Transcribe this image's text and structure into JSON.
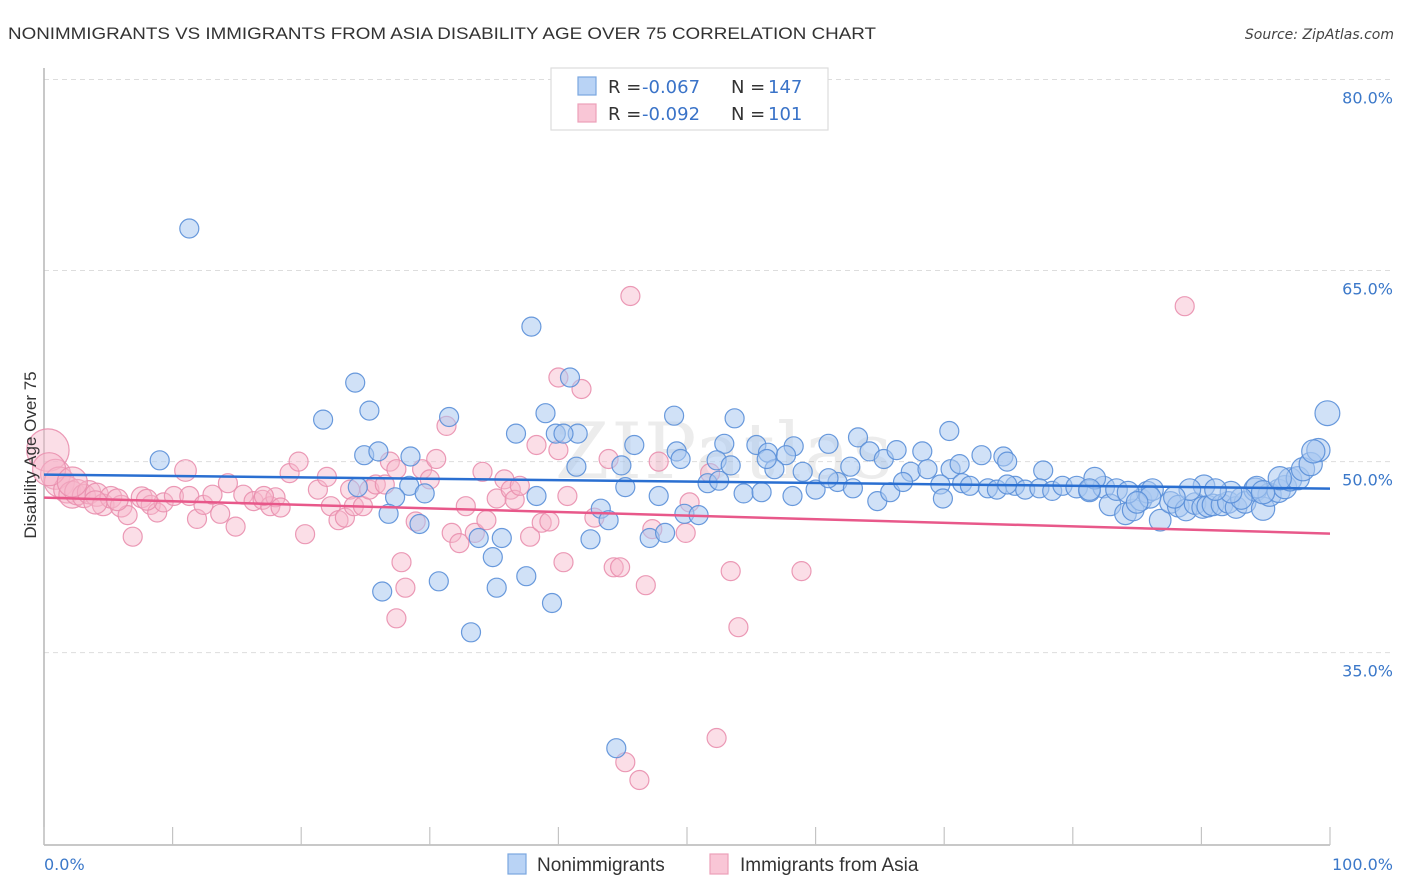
{
  "header": {
    "title": "NONIMMIGRANTS VS IMMIGRANTS FROM ASIA DISABILITY AGE OVER 75 CORRELATION CHART",
    "source": "Source: ZipAtlas.com"
  },
  "legend_top": [
    {
      "r_label": "R =",
      "r_value": "-0.067",
      "n_label": "N =",
      "n_value": "147"
    },
    {
      "r_label": "R =",
      "r_value": "-0.092",
      "n_label": "N =",
      "n_value": "101"
    }
  ],
  "legend_bottom": [
    "Nonimmigrants",
    "Immigrants from Asia"
  ],
  "chart_data": {
    "type": "scatter",
    "title": "NONIMMIGRANTS VS IMMIGRANTS FROM ASIA DISABILITY AGE OVER 75 CORRELATION CHART",
    "xlabel": "",
    "ylabel": "Disability Age Over 75",
    "xlim": [
      0,
      100
    ],
    "ylim": [
      19.9,
      80.9
    ],
    "x_ticks": [
      0,
      10,
      20,
      30,
      40,
      50,
      60,
      70,
      80,
      90,
      100
    ],
    "x_tick_labels": [
      "0.0%",
      "100.0%"
    ],
    "y_ticks": [
      35,
      50,
      65,
      80
    ],
    "y_tick_labels": [
      "35.0%",
      "50.0%",
      "65.0%",
      "80.0%"
    ],
    "grid": true,
    "legend_placement": "bottom-center",
    "watermark": "ZIPatlas",
    "series": [
      {
        "name": "Nonimmigrants",
        "R": -0.067,
        "N": 147,
        "fill": "#a9c8f0",
        "stroke": "#5a8fd8",
        "legend_fill": "#b9d3f5",
        "legend_stroke": "#7aa7e0",
        "line_color": "#2a6fd1",
        "trend": [
          [
            0,
            48.98
          ],
          [
            100,
            47.88
          ]
        ],
        "points": [
          [
            11.3,
            68.3
          ],
          [
            37.9,
            60.6
          ],
          [
            24.2,
            56.2
          ],
          [
            40.9,
            56.6
          ],
          [
            25.3,
            54.0
          ],
          [
            21.7,
            53.3
          ],
          [
            31.5,
            53.5
          ],
          [
            39.0,
            53.8
          ],
          [
            49.0,
            53.6
          ],
          [
            53.7,
            53.4
          ],
          [
            36.7,
            52.2
          ],
          [
            39.8,
            52.2
          ],
          [
            41.5,
            52.2
          ],
          [
            45.9,
            51.3
          ],
          [
            52.9,
            51.4
          ],
          [
            55.4,
            51.3
          ],
          [
            58.3,
            51.2
          ],
          [
            61.0,
            51.4
          ],
          [
            63.3,
            51.9
          ],
          [
            70.4,
            52.4
          ],
          [
            9.0,
            50.1
          ],
          [
            24.9,
            50.5
          ],
          [
            26.0,
            50.8
          ],
          [
            41.4,
            49.6
          ],
          [
            44.9,
            49.7
          ],
          [
            49.2,
            50.8
          ],
          [
            52.3,
            50.1
          ],
          [
            53.4,
            49.7
          ],
          [
            56.3,
            50.7
          ],
          [
            57.7,
            50.5
          ],
          [
            56.8,
            49.4
          ],
          [
            59.0,
            49.2
          ],
          [
            62.7,
            49.6
          ],
          [
            64.2,
            50.8
          ],
          [
            65.3,
            50.2
          ],
          [
            66.3,
            50.9
          ],
          [
            67.4,
            49.2
          ],
          [
            68.3,
            50.8
          ],
          [
            68.7,
            49.4
          ],
          [
            70.5,
            49.4
          ],
          [
            72.9,
            50.5
          ],
          [
            74.6,
            50.4
          ],
          [
            74.9,
            50.0
          ],
          [
            77.7,
            49.3
          ],
          [
            28.5,
            50.4
          ],
          [
            28.4,
            48.1
          ],
          [
            29.6,
            47.5
          ],
          [
            27.3,
            47.2
          ],
          [
            24.4,
            48.0
          ],
          [
            26.8,
            45.9
          ],
          [
            29.2,
            45.1
          ],
          [
            38.3,
            47.3
          ],
          [
            45.2,
            48.0
          ],
          [
            47.8,
            47.3
          ],
          [
            43.3,
            46.3
          ],
          [
            43.9,
            45.4
          ],
          [
            49.8,
            45.9
          ],
          [
            50.9,
            45.8
          ],
          [
            47.1,
            44.0
          ],
          [
            48.3,
            44.4
          ],
          [
            33.8,
            44.0
          ],
          [
            35.6,
            44.0
          ],
          [
            34.9,
            42.5
          ],
          [
            30.7,
            40.6
          ],
          [
            35.2,
            40.1
          ],
          [
            26.3,
            39.8
          ],
          [
            37.5,
            41.0
          ],
          [
            39.5,
            38.9
          ],
          [
            33.2,
            36.6
          ],
          [
            44.5,
            27.5
          ],
          [
            51.6,
            48.3
          ],
          [
            52.5,
            48.5
          ],
          [
            54.4,
            47.5
          ],
          [
            55.8,
            47.6
          ],
          [
            58.2,
            47.3
          ],
          [
            60.0,
            47.8
          ],
          [
            61.7,
            48.4
          ],
          [
            64.8,
            46.9
          ],
          [
            65.8,
            47.6
          ],
          [
            66.8,
            48.4
          ],
          [
            69.7,
            48.2
          ],
          [
            69.9,
            47.1
          ],
          [
            71.4,
            48.3
          ],
          [
            72.0,
            48.1
          ],
          [
            73.4,
            47.9
          ],
          [
            75.5,
            48.1
          ],
          [
            76.3,
            47.8
          ],
          [
            77.4,
            47.9
          ],
          [
            78.4,
            47.7
          ],
          [
            79.2,
            48.1
          ],
          [
            80.3,
            48.0,
            1.3
          ],
          [
            81.3,
            47.7,
            1.3
          ],
          [
            82.4,
            48.0,
            1.3
          ],
          [
            82.9,
            46.6,
            1.3
          ],
          [
            84.1,
            45.9,
            1.3
          ],
          [
            84.7,
            46.2,
            1.3
          ],
          [
            85.3,
            47.0,
            1.3
          ],
          [
            85.8,
            47.6,
            1.3
          ],
          [
            86.2,
            47.8,
            1.3
          ],
          [
            86.8,
            45.4,
            1.3
          ],
          [
            87.6,
            46.8,
            1.3
          ],
          [
            88.2,
            46.5,
            1.3
          ],
          [
            88.8,
            46.2,
            1.3
          ],
          [
            89.5,
            46.7,
            1.3
          ],
          [
            90.1,
            46.4,
            1.3
          ],
          [
            90.5,
            46.5,
            1.3
          ],
          [
            90.9,
            46.6,
            1.3
          ],
          [
            91.6,
            46.6,
            1.3
          ],
          [
            92.1,
            46.8,
            1.3
          ],
          [
            92.7,
            46.4,
            1.3
          ],
          [
            93.4,
            46.8,
            1.3
          ],
          [
            94.2,
            47.8,
            1.5
          ],
          [
            94.8,
            46.3,
            1.5
          ],
          [
            95.3,
            47.4,
            1.5
          ],
          [
            96.0,
            47.7,
            1.5
          ],
          [
            96.5,
            48.0,
            1.5
          ],
          [
            96.9,
            48.6,
            1.5
          ],
          [
            97.5,
            48.7,
            1.5
          ],
          [
            97.9,
            49.4,
            1.5
          ],
          [
            98.5,
            49.8,
            1.5
          ],
          [
            99.1,
            50.9,
            1.5
          ],
          [
            99.8,
            53.8,
            1.7
          ],
          [
            94.3,
            48.0,
            1.3
          ],
          [
            93.1,
            47.1,
            1.3
          ],
          [
            90.2,
            48.1,
            1.3
          ],
          [
            89.1,
            47.8,
            1.3
          ],
          [
            92.3,
            47.6,
            1.3
          ],
          [
            83.4,
            47.8,
            1.3
          ],
          [
            84.3,
            47.6,
            1.3
          ],
          [
            74.1,
            47.8
          ],
          [
            74.9,
            48.2
          ],
          [
            91.1,
            47.8,
            1.3
          ],
          [
            81.7,
            48.7,
            1.3
          ],
          [
            94.8,
            47.6,
            1.5
          ],
          [
            71.2,
            49.8
          ],
          [
            96.1,
            48.7,
            1.5
          ],
          [
            98.7,
            50.8,
            1.5
          ],
          [
            86.0,
            47.2,
            1.3
          ],
          [
            87.9,
            47.2,
            1.3
          ],
          [
            62.9,
            47.9
          ],
          [
            61.0,
            48.7
          ],
          [
            56.2,
            50.2
          ],
          [
            42.5,
            43.9
          ],
          [
            40.4,
            52.2
          ],
          [
            49.5,
            50.2
          ],
          [
            81.3,
            47.8,
            1.3
          ],
          [
            85.0,
            46.8,
            1.3
          ]
        ]
      },
      {
        "name": "Immigrants from Asia",
        "R": -0.092,
        "N": 101,
        "fill": "#f6b6ca",
        "stroke": "#e98fae",
        "legend_fill": "#f9c6d6",
        "legend_stroke": "#eca0b9",
        "line_color": "#e8588a",
        "trend": [
          [
            0,
            47.17
          ],
          [
            100,
            44.35
          ]
        ],
        "points": [
          [
            0.3,
            50.9,
            5
          ],
          [
            0.9,
            49.0,
            2.5
          ],
          [
            1.2,
            48.4,
            2.5
          ],
          [
            1.8,
            47.8,
            2
          ],
          [
            2.2,
            47.4,
            2
          ],
          [
            2.6,
            47.6,
            1.8
          ],
          [
            3.1,
            47.3,
            1.5
          ],
          [
            3.5,
            47.6,
            1.5
          ],
          [
            4.1,
            47.4,
            1.5
          ],
          [
            4.6,
            46.6,
            1.3
          ],
          [
            5.2,
            47.2,
            1.3
          ],
          [
            6.0,
            46.5,
            1.3
          ],
          [
            6.5,
            45.8
          ],
          [
            6.9,
            44.1
          ],
          [
            7.6,
            47.2,
            1.2
          ],
          [
            8.3,
            46.6
          ],
          [
            8.8,
            46.0
          ],
          [
            9.3,
            46.8
          ],
          [
            10.1,
            47.3
          ],
          [
            11.0,
            49.3,
            1.3
          ],
          [
            11.3,
            47.3
          ],
          [
            11.9,
            45.5
          ],
          [
            12.4,
            46.6
          ],
          [
            13.1,
            47.4
          ],
          [
            13.7,
            45.9
          ],
          [
            14.3,
            48.3
          ],
          [
            14.9,
            44.9
          ],
          [
            15.5,
            47.4
          ],
          [
            16.3,
            46.9
          ],
          [
            17.0,
            47.0
          ],
          [
            17.6,
            46.5
          ],
          [
            18.0,
            47.2
          ],
          [
            18.4,
            46.4
          ],
          [
            19.1,
            49.1
          ],
          [
            19.8,
            50.0
          ],
          [
            20.3,
            44.3
          ],
          [
            21.3,
            47.8
          ],
          [
            22.0,
            48.8
          ],
          [
            22.3,
            46.5
          ],
          [
            22.9,
            45.4
          ],
          [
            23.4,
            45.6
          ],
          [
            23.8,
            47.8
          ],
          [
            24.1,
            46.5
          ],
          [
            24.8,
            46.5
          ],
          [
            25.3,
            47.8
          ],
          [
            25.8,
            48.2
          ],
          [
            26.5,
            48.2
          ],
          [
            26.9,
            50.0
          ],
          [
            27.4,
            49.4
          ],
          [
            27.8,
            42.1
          ],
          [
            28.1,
            40.1
          ],
          [
            27.4,
            37.7
          ],
          [
            28.9,
            45.3
          ],
          [
            29.4,
            49.4
          ],
          [
            30.0,
            48.6
          ],
          [
            30.5,
            50.2
          ],
          [
            31.3,
            52.8
          ],
          [
            31.7,
            44.4
          ],
          [
            32.3,
            43.6
          ],
          [
            32.8,
            46.5
          ],
          [
            33.5,
            44.4
          ],
          [
            34.1,
            49.2
          ],
          [
            34.4,
            45.4
          ],
          [
            35.2,
            47.1
          ],
          [
            35.8,
            48.6
          ],
          [
            36.3,
            47.8
          ],
          [
            36.6,
            47.0
          ],
          [
            37.0,
            48.1
          ],
          [
            37.8,
            44.1
          ],
          [
            38.3,
            51.3
          ],
          [
            38.7,
            45.2
          ],
          [
            39.3,
            45.3
          ],
          [
            40.0,
            56.6
          ],
          [
            40.4,
            42.1
          ],
          [
            40.7,
            47.3
          ],
          [
            41.8,
            55.7
          ],
          [
            42.8,
            45.6
          ],
          [
            43.9,
            50.2
          ],
          [
            44.3,
            41.7
          ],
          [
            44.8,
            41.7
          ],
          [
            45.6,
            63.0
          ],
          [
            46.3,
            25.0
          ],
          [
            46.8,
            40.3
          ],
          [
            47.3,
            44.7
          ],
          [
            47.8,
            50.0
          ],
          [
            49.9,
            44.4
          ],
          [
            50.2,
            46.8
          ],
          [
            51.8,
            49.1
          ],
          [
            52.3,
            28.3
          ],
          [
            53.4,
            41.4
          ],
          [
            54.0,
            37.0
          ],
          [
            58.9,
            41.4
          ],
          [
            88.7,
            62.2
          ],
          [
            45.2,
            26.4
          ],
          [
            0.4,
            49.4,
            3
          ],
          [
            2.2,
            48.4,
            2.5
          ],
          [
            4.0,
            46.8,
            1.5
          ],
          [
            5.7,
            47.0,
            1.3
          ],
          [
            8.0,
            47.0,
            1.2
          ],
          [
            17.1,
            47.3
          ],
          [
            40.0,
            50.9
          ]
        ]
      }
    ]
  }
}
